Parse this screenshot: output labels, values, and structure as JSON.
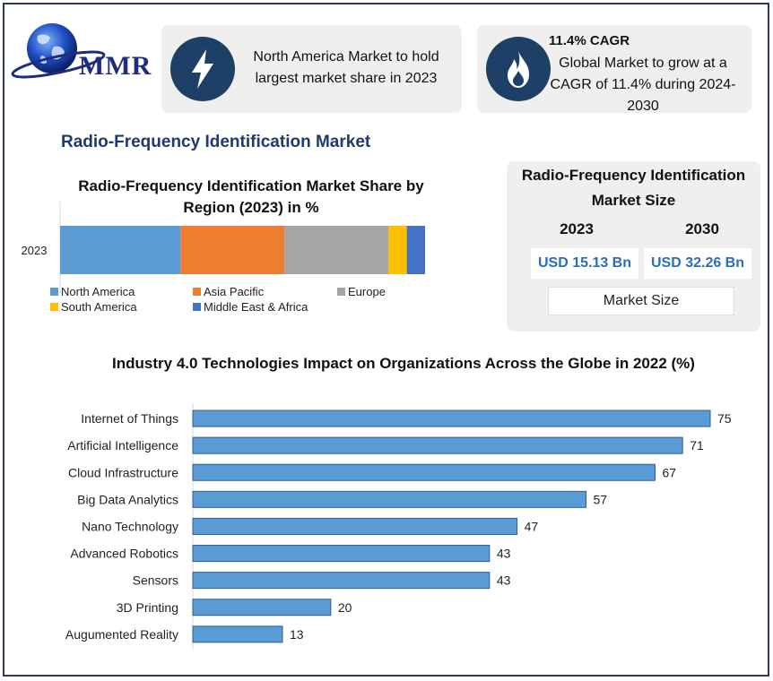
{
  "logo": {
    "text": "MMR"
  },
  "highlights": [
    {
      "icon": "lightning-icon",
      "text": "North America Market to hold largest market share in 2023"
    },
    {
      "icon": "flame-icon",
      "heading": "11.4% CAGR",
      "text": "Global Market to grow at a CAGR of 11.4% during 2024-2030"
    }
  ],
  "section_title": "Radio-Frequency Identification Market",
  "market_size": {
    "title": "Radio-Frequency Identification Market Size",
    "years": [
      "2023",
      "2030"
    ],
    "values": [
      "USD 15.13 Bn",
      "USD 32.26 Bn"
    ],
    "label": "Market Size"
  },
  "colors": {
    "accent_navy": "#1e3f66",
    "value_blue": "#2a6ebb",
    "bar_blue": "#5b9bd5"
  },
  "chart_data": [
    {
      "type": "bar",
      "orientation": "horizontal",
      "stacked": true,
      "title": "Radio-Frequency Identification Market Share by Region (2023) in %",
      "categories": [
        "2023"
      ],
      "xlim": [
        0,
        100
      ],
      "legend_position": "bottom",
      "series": [
        {
          "name": "North America",
          "color": "#5b9bd5",
          "values": [
            33
          ]
        },
        {
          "name": "Asia Pacific",
          "color": "#ed7d31",
          "values": [
            28.5
          ]
        },
        {
          "name": "Europe",
          "color": "#a5a5a5",
          "values": [
            28.5
          ]
        },
        {
          "name": "South America",
          "color": "#ffc000",
          "values": [
            5
          ]
        },
        {
          "name": "Middle East & Africa",
          "color": "#4472c4",
          "values": [
            5
          ]
        }
      ]
    },
    {
      "type": "bar",
      "orientation": "horizontal",
      "title": "Industry 4.0 Technologies Impact on Organizations Across the Globe in 2022 (%)",
      "categories": [
        "Internet of Things",
        "Artificial Intelligence",
        "Cloud Infrastructure",
        "Big Data Analytics",
        "Nano Technology",
        "Advanced Robotics",
        "Sensors",
        "3D Printing",
        "Augumented Reality"
      ],
      "values": [
        75,
        71,
        67,
        57,
        47,
        43,
        43,
        20,
        13
      ],
      "xlim": [
        0,
        75
      ],
      "data_labels": true
    }
  ]
}
